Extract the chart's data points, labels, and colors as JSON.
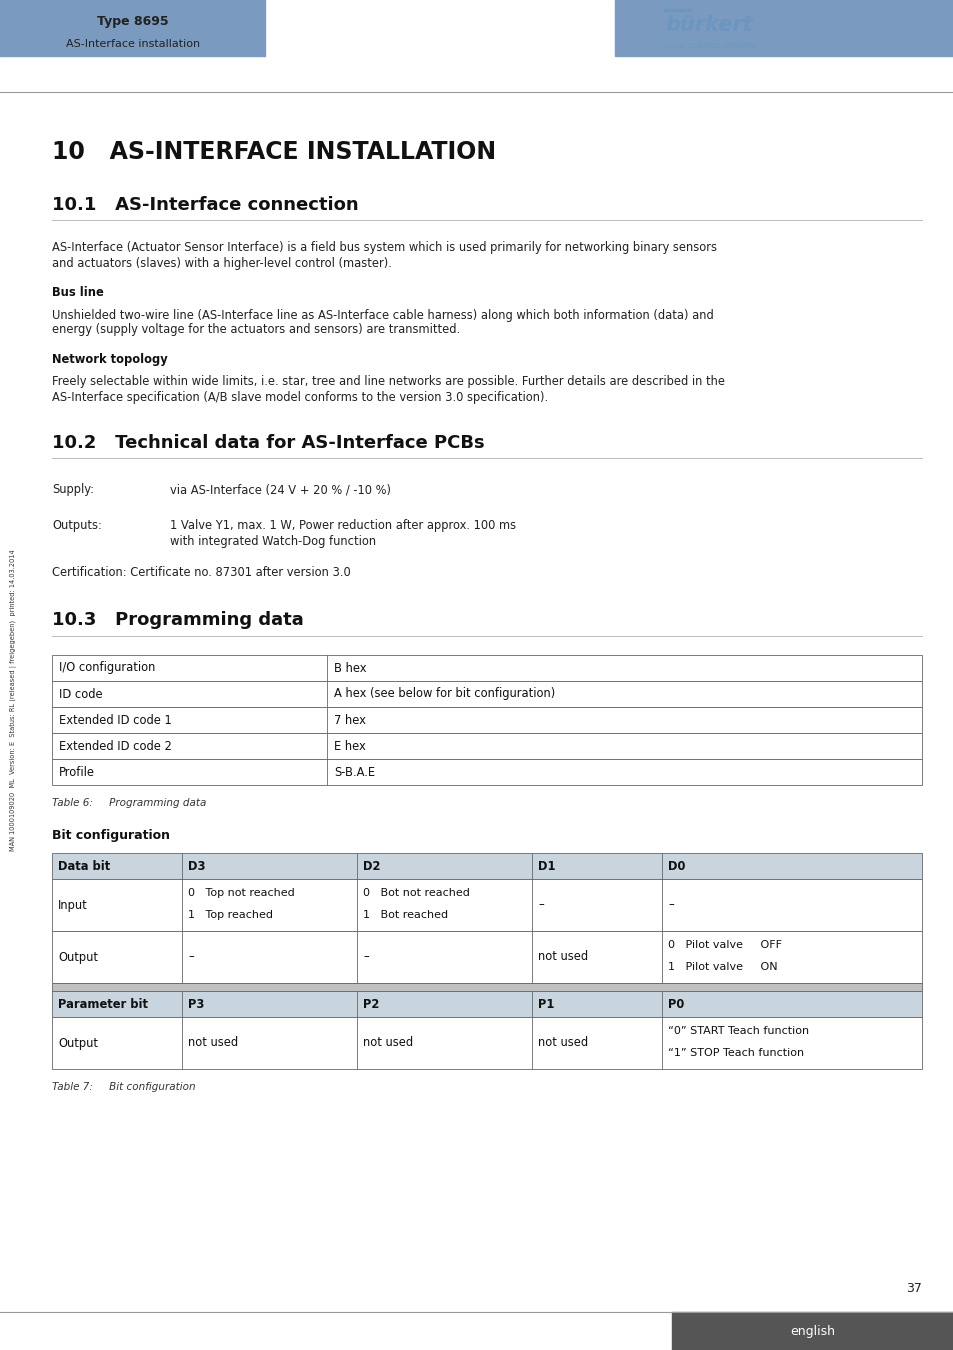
{
  "page_width": 9.54,
  "page_height": 13.5,
  "bg_color": "#ffffff",
  "header_bar_color": "#7a9bbf",
  "header_text_type": "Type 8695",
  "header_text_sub": "AS-Interface installation",
  "burkert_color": "#6b96bf",
  "section_title": "10   AS-INTERFACE INSTALLATION",
  "sub_title_1": "10.1   AS-Interface connection",
  "body_text_1a": "AS-Interface (Actuator Sensor Interface) is a field bus system which is used primarily for networking binary sensors",
  "body_text_1b": "and actuators (slaves) with a higher-level control (master).",
  "bold_label_1": "Bus line",
  "body_text_2a": "Unshielded two-wire line (AS-Interface line as AS-Interface cable harness) along which both information (data) and",
  "body_text_2b": "energy (supply voltage for the actuators and sensors) are transmitted.",
  "bold_label_2": "Network topology",
  "body_text_3a": "Freely selectable within wide limits, i.e. star, tree and line networks are possible. Further details are described in the",
  "body_text_3b": "AS-Interface specification (A/B slave model conforms to the version 3.0 specification).",
  "sub_title_2": "10.2   Technical data for AS-Interface PCBs",
  "supply_label": "Supply:",
  "supply_text": "via AS-Interface (24 V + 20 % / -10 %)",
  "outputs_label": "Outputs:",
  "outputs_text_1": "1 Valve Y1, max. 1 W, Power reduction after approx. 100 ms",
  "outputs_text_2": "with integrated Watch-Dog function",
  "cert_text": "Certification: Certificate no. 87301 after version 3.0",
  "sub_title_3": "10.3   Programming data",
  "table1_headers": [
    "I/O configuration",
    "B hex"
  ],
  "table1_rows": [
    [
      "ID code",
      "A hex (see below for bit configuration)"
    ],
    [
      "Extended ID code 1",
      "7 hex"
    ],
    [
      "Extended ID code 2",
      "E hex"
    ],
    [
      "Profile",
      "S-B.A.E"
    ]
  ],
  "table1_caption": "Table 6:     Programming data",
  "bit_config_label": "Bit configuration",
  "table2_header_row": [
    "Data bit",
    "D3",
    "D2",
    "D1",
    "D0"
  ],
  "table2_header_bg": "#c8d4de",
  "table2_row_input_col0": "Input",
  "table2_row_input_d3": [
    "0   Top not reached",
    "1   Top reached"
  ],
  "table2_row_input_d2": [
    "0   Bot not reached",
    "1   Bot reached"
  ],
  "table2_row_input_d1": "–",
  "table2_row_input_d0": "–",
  "table2_row_output_col0": "Output",
  "table2_row_output_d3": "–",
  "table2_row_output_d2": "–",
  "table2_row_output_d1": "not used",
  "table2_row_output_d0": [
    "0   Pilot valve     OFF",
    "1   Pilot valve     ON"
  ],
  "table2_param_header": [
    "Parameter bit",
    "P3",
    "P2",
    "P1",
    "P0"
  ],
  "table2_param_output_col0": "Output",
  "table2_param_output_p3": "not used",
  "table2_param_output_p2": "not used",
  "table2_param_output_p1": "not used",
  "table2_param_output_p0": [
    "“0” START Teach function",
    "“1” STOP Teach function"
  ],
  "table2_caption": "Table 7:     Bit configuration",
  "page_number": "37",
  "footer_lang": "english",
  "footer_lang_bg": "#555555",
  "side_text": "MAN 1000109020  ML  Version: E  Status: RL (released | freigegeben)  printed: 14.03.2014"
}
